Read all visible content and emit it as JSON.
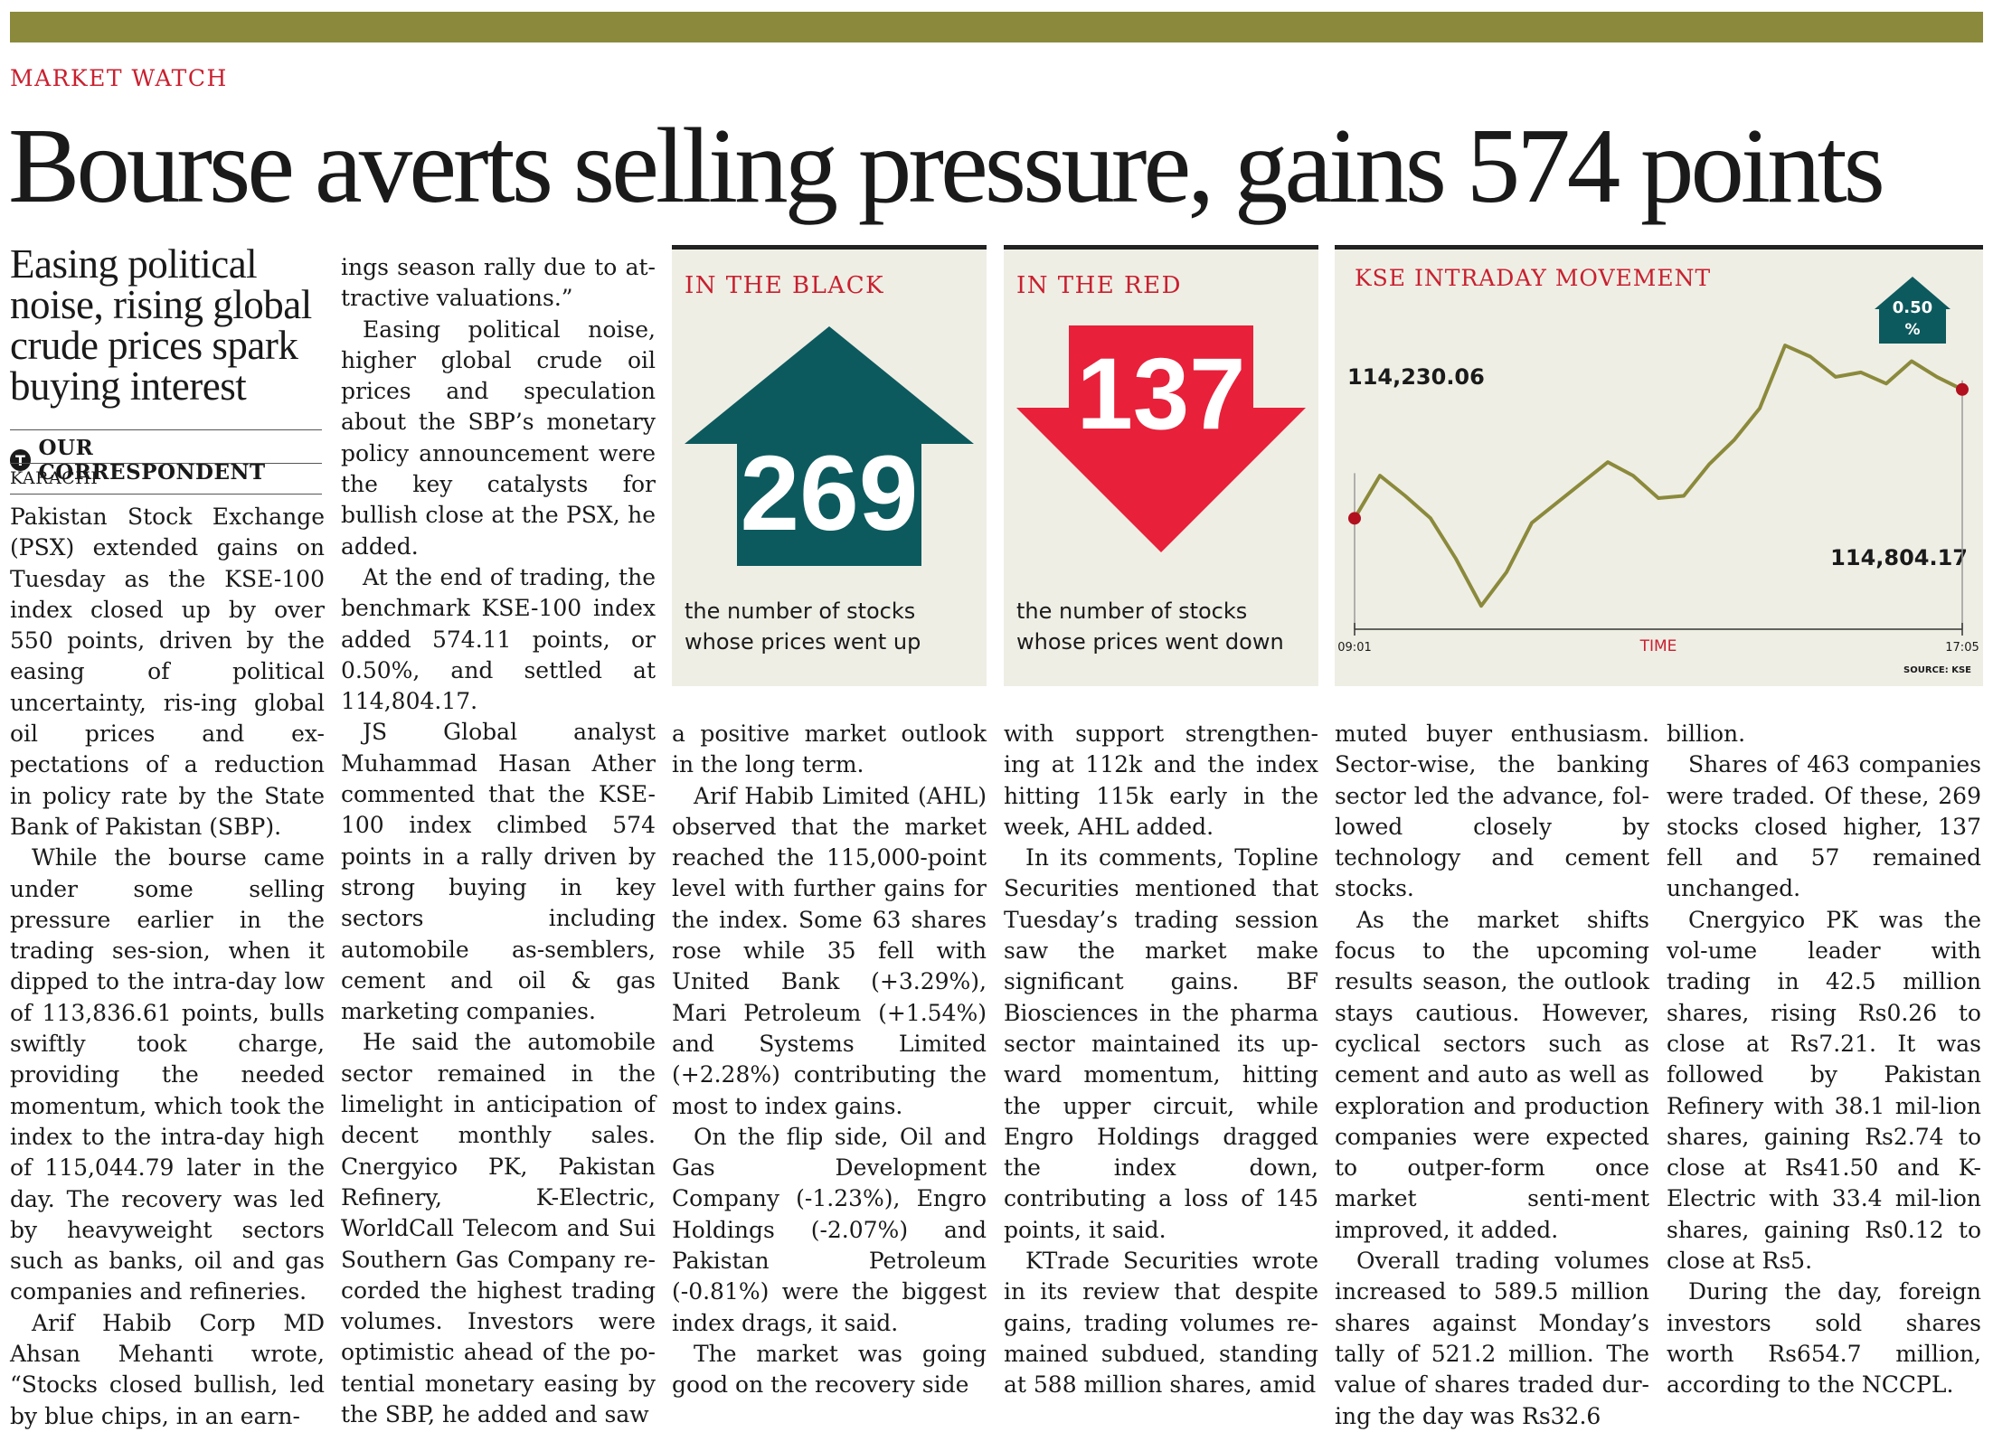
{
  "section": "MARKET WATCH",
  "headline": "Bourse averts selling pressure, gains 574 points",
  "deck": "Easing political noise, rising global crude prices spark buying interest",
  "byline": "OUR CORRESPONDENT",
  "byline_logo": "T",
  "dateline": "KARACHI",
  "columns": [
    [
      "Pakistan Stock Exchange (PSX) extended gains on Tuesday as the KSE-100 index closed up by over 550 points, driven by the easing of political uncertainty, ris-ing global oil prices and ex-pectations of a reduction in policy rate by the State Bank of Pakistan (SBP).",
      "While the bourse came under some selling pressure earlier in the trading ses-sion, when it dipped to the intra-day low of 113,836.61 points, bulls swiftly took charge, providing the needed momentum, which took the index to the intra-day high of 115,044.79 later in the day. The recovery was led by heavyweight sectors such as banks, oil and gas companies and refineries.",
      "Arif Habib Corp MD Ahsan Mehanti wrote, “Stocks closed bullish, led by blue chips, in an earn-"
    ],
    [
      "ings season rally due to at-tractive valuations.”",
      "Easing political noise, higher global crude oil prices and speculation about the SBP’s monetary policy announcement were the key catalysts for bullish close at the PSX, he added.",
      "At the end of trading, the benchmark KSE-100 index added 574.11 points, or 0.50%, and settled at 114,804.17.",
      "JS Global analyst Muhammad Hasan Ather commented that the KSE-100 index climbed 574 points in a rally driven by strong buying in key sectors including automobile as-semblers, cement and oil & gas marketing companies.",
      "He said the automobile sector remained in the limelight in anticipation of decent monthly sales. Cnergyico PK, Pakistan Refinery, K-Electric, WorldCall Telecom and Sui Southern Gas Company re-corded the highest trading volumes. Investors were optimistic ahead of the po-tential monetary easing by the SBP, he added and saw"
    ],
    [
      "a positive market outlook in the long term.",
      "Arif Habib Limited (AHL) observed that the market reached the 115,000-point level with further gains for the index. Some 63 shares rose while 35 fell with United Bank (+3.29%), Mari Petroleum (+1.54%) and Systems Limited (+2.28%) contributing the most to index gains.",
      "On the flip side, Oil and Gas Development Company (-1.23%), Engro Holdings (-2.07%) and Pakistan Petroleum (-0.81%) were the biggest index drags, it said.",
      "The market was going good on the recovery side"
    ],
    [
      "with support strengthen-ing at 112k and the index hitting 115k early in the week, AHL added.",
      "In its comments, Topline Securities mentioned that Tuesday’s trading session saw the market make significant gains. BF Biosciences in the pharma sector maintained its up-ward momentum, hitting the upper circuit, while Engro Holdings dragged the index down, contributing a loss of 145 points, it said.",
      "KTrade Securities wrote in its review that despite gains, trading volumes re-mained subdued, standing at 588 million shares, amid"
    ],
    [
      "muted buyer enthusiasm. Sector-wise, the banking sector led the advance, fol-lowed closely by technology and cement stocks.",
      "As the market shifts focus to the upcoming results season, the outlook stays cautious. However, cyclical sectors such as cement and auto as well as exploration and production companies were expected to outper-form once market senti-ment improved, it added.",
      "Overall trading volumes increased to 589.5 million shares against Monday’s tally of 521.2 million. The value of shares traded dur-ing the day was Rs32.6"
    ],
    [
      "billion.",
      "Shares of 463 companies were traded. Of these, 269 stocks closed higher, 137 fell and 57 remained unchanged.",
      "Cnergyico PK was the vol-ume leader with trading in 42.5 million shares, rising Rs0.26 to close at Rs7.21. It was followed by Pakistan Refinery with 38.1 mil-lion shares, gaining Rs2.74 to close at Rs41.50 and K-Electric with 33.4 mil-lion shares, gaining Rs0.12 to close at Rs5.",
      "During the day, foreign investors sold shares worth Rs654.7 million, according to the NCCPL."
    ]
  ],
  "black_panel": {
    "title": "IN THE BLACK",
    "number": "269",
    "caption_line1": "the number of stocks",
    "caption_line2": "whose prices went up",
    "color": "#0d5a5e"
  },
  "red_panel": {
    "title": "IN THE RED",
    "number": "137",
    "caption_line1": "the number of stocks",
    "caption_line2": "whose prices went down",
    "color": "#e8203a"
  },
  "chart_data": {
    "type": "line",
    "title": "KSE INTRADAY MOVEMENT",
    "xlabel": "TIME",
    "x_start_label": "09:01",
    "x_end_label": "17:05",
    "source": "SOURCE: KSE",
    "badge_value": "0.50",
    "badge_unit": "%",
    "open_value": "114,230.06",
    "close_value": "114,804.17",
    "low": 113836.61,
    "high": 115044.79,
    "line_color": "#8b8a3c",
    "marker_color": "#b2101f",
    "series": [
      {
        "name": "KSE-100",
        "times": [
          "09:01",
          "09:20",
          "09:40",
          "10:00",
          "10:20",
          "10:40",
          "11:00",
          "11:20",
          "11:40",
          "12:00",
          "12:20",
          "12:40",
          "13:00",
          "13:20",
          "13:40",
          "14:00",
          "14:20",
          "14:40",
          "15:00",
          "15:20",
          "15:40",
          "16:00",
          "16:20",
          "16:40",
          "17:05"
        ],
        "values": [
          114230,
          114420,
          114330,
          114230,
          114050,
          113840,
          113990,
          114210,
          114300,
          114390,
          114480,
          114420,
          114320,
          114330,
          114470,
          114580,
          114720,
          115000,
          114950,
          114860,
          114880,
          114830,
          114930,
          114860,
          114804
        ]
      }
    ]
  }
}
